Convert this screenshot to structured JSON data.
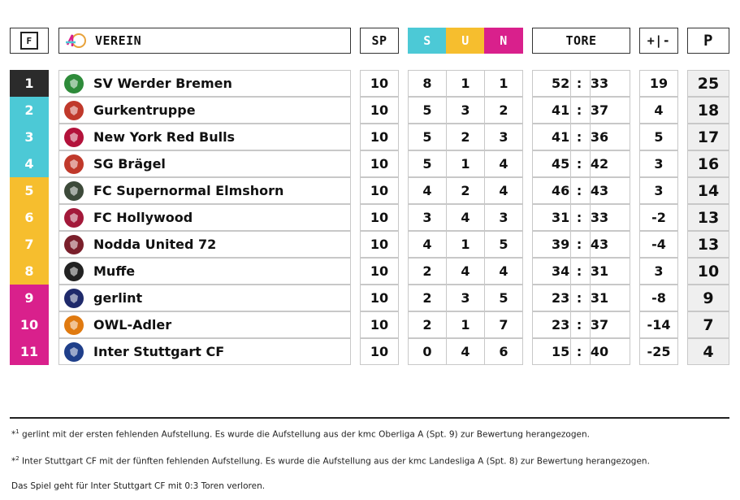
{
  "header": {
    "f_label": "F",
    "verein_label": "VEREIN",
    "sp_label": "SP",
    "s_label": "S",
    "u_label": "U",
    "n_label": "N",
    "tore_label": "TORE",
    "diff_label": "+|-",
    "p_label": "P"
  },
  "colors": {
    "rank_1": "#2b2b2b",
    "rank_cyan": "#4cc9d6",
    "rank_yellow": "#f6be2e",
    "rank_magenta": "#d9208c",
    "points_bg": "#efefef"
  },
  "standings": [
    {
      "rank": "1",
      "team": "SV Werder Bremen",
      "logo_icon": "werder-bremen-logo",
      "sp": "10",
      "s": "8",
      "u": "1",
      "n": "1",
      "gf": "52",
      "ga": "33",
      "diff": "19",
      "p": "25"
    },
    {
      "rank": "2",
      "team": "Gurkentruppe",
      "logo_icon": "gurkentruppe-logo",
      "sp": "10",
      "s": "5",
      "u": "3",
      "n": "2",
      "gf": "41",
      "ga": "37",
      "diff": "4",
      "p": "18"
    },
    {
      "rank": "3",
      "team": "New York Red Bulls",
      "logo_icon": "new-york-red-bulls-logo",
      "sp": "10",
      "s": "5",
      "u": "2",
      "n": "3",
      "gf": "41",
      "ga": "36",
      "diff": "5",
      "p": "17"
    },
    {
      "rank": "4",
      "team": "SG Brägel",
      "logo_icon": "sg-bragel-logo",
      "sp": "10",
      "s": "5",
      "u": "1",
      "n": "4",
      "gf": "45",
      "ga": "42",
      "diff": "3",
      "p": "16"
    },
    {
      "rank": "5",
      "team": "FC Supernormal Elmshorn",
      "logo_icon": "fc-supernormal-elmshorn-logo",
      "sp": "10",
      "s": "4",
      "u": "2",
      "n": "4",
      "gf": "46",
      "ga": "43",
      "diff": "3",
      "p": "14"
    },
    {
      "rank": "6",
      "team": "FC Hollywood",
      "logo_icon": "fc-hollywood-logo",
      "sp": "10",
      "s": "3",
      "u": "4",
      "n": "3",
      "gf": "31",
      "ga": "33",
      "diff": "-2",
      "p": "13"
    },
    {
      "rank": "7",
      "team": "Nodda United 72",
      "logo_icon": "nodda-united-logo",
      "sp": "10",
      "s": "4",
      "u": "1",
      "n": "5",
      "gf": "39",
      "ga": "43",
      "diff": "-4",
      "p": "13"
    },
    {
      "rank": "8",
      "team": "Muffe",
      "logo_icon": "muffe-logo",
      "sp": "10",
      "s": "2",
      "u": "4",
      "n": "4",
      "gf": "34",
      "ga": "31",
      "diff": "3",
      "p": "10"
    },
    {
      "rank": "9",
      "team": "gerlint",
      "logo_icon": "gerlint-logo",
      "sp": "10",
      "s": "2",
      "u": "3",
      "n": "5",
      "gf": "23",
      "ga": "31",
      "diff": "-8",
      "p": "9"
    },
    {
      "rank": "10",
      "team": "OWL-Adler",
      "logo_icon": "owl-adler-logo",
      "sp": "10",
      "s": "2",
      "u": "1",
      "n": "7",
      "gf": "23",
      "ga": "37",
      "diff": "-14",
      "p": "7"
    },
    {
      "rank": "11",
      "team": "Inter Stuttgart CF",
      "logo_icon": "inter-stuttgart-logo",
      "sp": "10",
      "s": "0",
      "u": "4",
      "n": "6",
      "gf": "15",
      "ga": "40",
      "diff": "-25",
      "p": "4"
    }
  ],
  "footnotes": {
    "fn1_marker": "*",
    "fn1_sup": "1",
    "fn1_text": " gerlint mit der ersten fehlenden Aufstellung. Es wurde die Aufstellung aus der kmc Oberliga A (Spt. 9) zur Bewertung herangezogen.",
    "fn2_marker": "*",
    "fn2_sup": "2",
    "fn2_text": " Inter Stuttgart CF mit der fünften fehlenden Aufstellung. Es wurde die Aufstellung aus der kmc Landesliga A (Spt. 8) zur Bewertung herangezogen.",
    "fn3_text": "Das Spiel geht für Inter Stuttgart CF mit 0:3 Toren verloren."
  }
}
